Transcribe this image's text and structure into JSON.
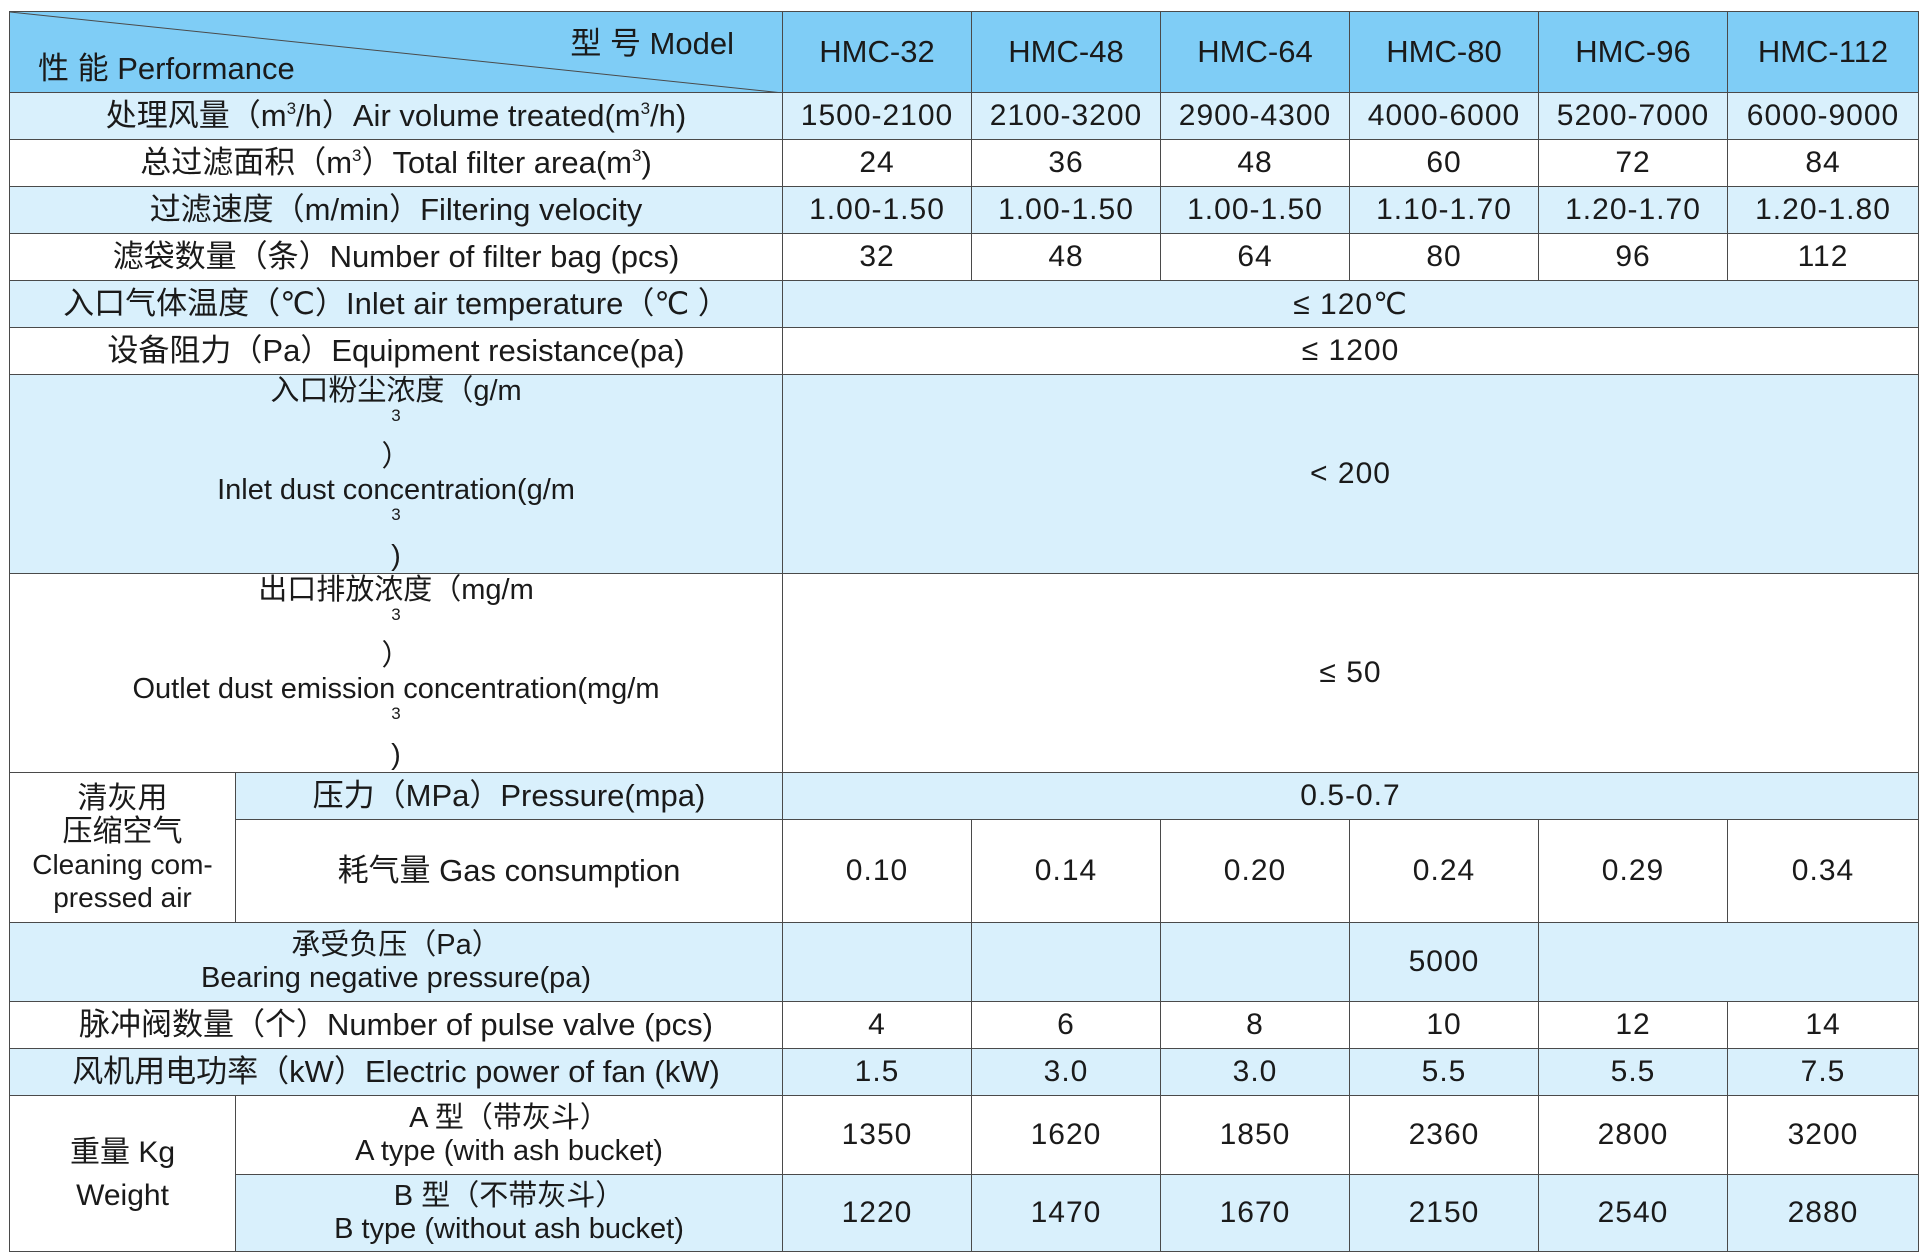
{
  "header": {
    "model_label": "型 号 Model",
    "performance_label": "性 能 Performance",
    "models": [
      "HMC-32",
      "HMC-48",
      "HMC-64",
      "HMC-80",
      "HMC-96",
      "HMC-112"
    ]
  },
  "rows": {
    "air_volume": {
      "label_cn": "处理风量（m",
      "label_sup": "3",
      "label_mid": "/h）Air volume treated(m",
      "label_sup2": "3",
      "label_end": "/h)",
      "values": [
        "1500-2100",
        "2100-3200",
        "2900-4300",
        "4000-6000",
        "5200-7000",
        "6000-9000"
      ]
    },
    "filter_area": {
      "label_cn": "总过滤面积（m",
      "label_sup": "3",
      "label_mid": "）Total filter area(m",
      "label_sup2": "3",
      "label_end": ")",
      "values": [
        "24",
        "36",
        "48",
        "60",
        "72",
        "84"
      ]
    },
    "filter_velocity": {
      "label": "过滤速度（m/min）Filtering velocity",
      "values": [
        "1.00-1.50",
        "1.00-1.50",
        "1.00-1.50",
        "1.10-1.70",
        "1.20-1.70",
        "1.20-1.80"
      ]
    },
    "filter_bags": {
      "label": "滤袋数量（条）Number of filter bag (pcs)",
      "values": [
        "32",
        "48",
        "64",
        "80",
        "96",
        "112"
      ]
    },
    "inlet_temp": {
      "label": "入口气体温度（℃）Inlet air temperature（℃ ）",
      "value": "≤ 120℃"
    },
    "resistance": {
      "label": "设备阻力（Pa）Equipment resistance(pa)",
      "value": "≤ 1200"
    },
    "inlet_dust": {
      "label_cn_a": "入口粉尘浓度（g/m",
      "label_cn_sup": "3",
      "label_cn_b": "）",
      "label_en_a": "Inlet dust concentration(g/m",
      "label_en_sup": "3",
      "label_en_b": ")",
      "value": "< 200"
    },
    "outlet_dust": {
      "label_cn_a": "出口排放浓度（mg/m",
      "label_cn_sup": "3",
      "label_cn_b": "）",
      "label_en_a": "Outlet dust emission concentration(mg/m",
      "label_en_sup": "3",
      "label_en_b": ")",
      "value": "≤ 50"
    },
    "cleaning_air": {
      "group_label_cn_1": "清灰用",
      "group_label_cn_2": "压缩空气",
      "group_label_en_1": "Cleaning com-",
      "group_label_en_2": "pressed air",
      "pressure_label": "压力（MPa）Pressure(mpa)",
      "pressure_value": "0.5-0.7",
      "gas_label": "耗气量 Gas consumption",
      "gas_values": [
        "0.10",
        "0.14",
        "0.20",
        "0.24",
        "0.29",
        "0.34"
      ]
    },
    "negative_pressure": {
      "label_cn": "承受负压（Pa）",
      "label_en": "Bearing negative pressure(pa)",
      "value": "5000"
    },
    "pulse_valves": {
      "label": "脉冲阀数量（个）Number of pulse valve (pcs)",
      "values": [
        "4",
        "6",
        "8",
        "10",
        "12",
        "14"
      ]
    },
    "fan_power": {
      "label": "风机用电功率（kW）Electric power of fan (kW)",
      "values": [
        "1.5",
        "3.0",
        "3.0",
        "5.5",
        "5.5",
        "7.5"
      ]
    },
    "weight": {
      "group_label_cn": "重量 Kg",
      "group_label_en": "Weight",
      "a_label_cn": "A 型（带灰斗）",
      "a_label_en": "A type (with ash bucket)",
      "a_values": [
        "1350",
        "1620",
        "1850",
        "2360",
        "2800",
        "3200"
      ],
      "b_label_cn": "B 型（不带灰斗）",
      "b_label_en": "B type (without ash bucket)",
      "b_values": [
        "1220",
        "1470",
        "1670",
        "2150",
        "2540",
        "2880"
      ]
    }
  }
}
